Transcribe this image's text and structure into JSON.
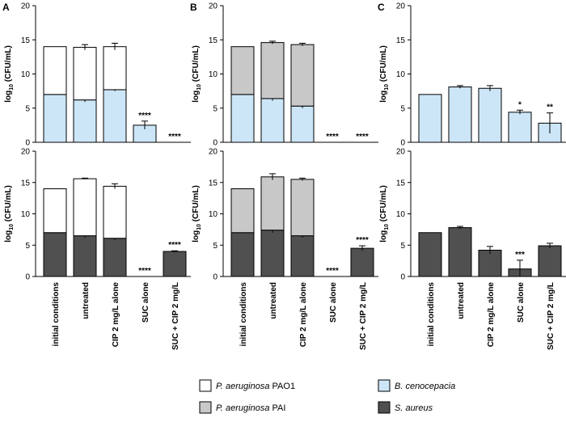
{
  "colors": {
    "pao1": "#ffffff",
    "pai": "#c8c8c8",
    "cenocepacia": "#cce6f7",
    "aureus": "#505050",
    "stroke": "#000000"
  },
  "legend": {
    "items": [
      {
        "key": "pao1",
        "italic": "P. aeruginosa",
        "rest": " PAO1"
      },
      {
        "key": "cenocepacia",
        "italic": "B. cenocepacia",
        "rest": ""
      },
      {
        "key": "pai",
        "italic": "P. aeruginosa",
        "rest": " PAI"
      },
      {
        "key": "aureus",
        "italic": "S. aureus",
        "rest": ""
      }
    ]
  },
  "chart_data": [
    {
      "panel": "A",
      "row": "top",
      "type": "bar",
      "stacked": true,
      "show_panel_label": true,
      "ylabel": "log10 (CFU/mL)",
      "ylim": [
        0,
        20
      ],
      "yticks": [
        0,
        5,
        10,
        15,
        20
      ],
      "categories": [
        "initial conditions",
        "untreated",
        "CIP 2 mg/L alone",
        "SUC alone",
        "SUC + CIP 2 mg/L"
      ],
      "series": [
        {
          "name": "B. cenocepacia",
          "color_key": "cenocepacia",
          "values": [
            7.0,
            6.2,
            7.7,
            2.5,
            0
          ],
          "errors": [
            0,
            0.3,
            0.2,
            0.6,
            0
          ]
        },
        {
          "name": "P. aeruginosa PAO1",
          "color_key": "pao1",
          "values": [
            7.0,
            7.7,
            6.3,
            0,
            0
          ],
          "errors": [
            0,
            0.4,
            0.5,
            0,
            0
          ]
        }
      ],
      "significance": [
        "",
        "",
        "",
        "****",
        "****"
      ]
    },
    {
      "panel": "B",
      "row": "top",
      "type": "bar",
      "stacked": true,
      "show_panel_label": true,
      "ylabel": "log10 (CFU/mL)",
      "ylim": [
        0,
        20
      ],
      "yticks": [
        0,
        5,
        10,
        15,
        20
      ],
      "categories": [
        "initial conditions",
        "untreated",
        "CIP 2 mg/L alone",
        "SUC alone",
        "SUC + CIP 2 mg/L"
      ],
      "series": [
        {
          "name": "B. cenocepacia",
          "color_key": "cenocepacia",
          "values": [
            7.0,
            6.4,
            5.3,
            0,
            0
          ],
          "errors": [
            0,
            0.3,
            0.3,
            0,
            0
          ]
        },
        {
          "name": "P. aeruginosa PAI",
          "color_key": "pai",
          "values": [
            7.0,
            8.2,
            9.0,
            0,
            0
          ],
          "errors": [
            0,
            0.2,
            0.2,
            0,
            0
          ]
        }
      ],
      "significance": [
        "",
        "",
        "",
        "****",
        "****"
      ]
    },
    {
      "panel": "C",
      "row": "top",
      "type": "bar",
      "stacked": false,
      "show_panel_label": true,
      "ylabel": "log10 (CFU/mL)",
      "ylim": [
        0,
        20
      ],
      "yticks": [
        0,
        5,
        10,
        15,
        20
      ],
      "categories": [
        "initial conditions",
        "untreated",
        "CIP 2 mg/L alone",
        "SUC alone",
        "SUC + CIP 2 mg/L"
      ],
      "series": [
        {
          "name": "B. cenocepacia",
          "color_key": "cenocepacia",
          "values": [
            7.0,
            8.1,
            7.9,
            4.4,
            2.8
          ],
          "errors": [
            0,
            0.2,
            0.4,
            0.3,
            1.5
          ]
        }
      ],
      "significance": [
        "",
        "",
        "",
        "*",
        "**"
      ]
    },
    {
      "panel": "A",
      "row": "bottom",
      "type": "bar",
      "stacked": true,
      "show_panel_label": false,
      "ylabel": "log10 (CFU/mL)",
      "ylim": [
        0,
        20
      ],
      "yticks": [
        0,
        5,
        10,
        15,
        20
      ],
      "categories": [
        "initial conditions",
        "untreated",
        "CIP 2 mg/L alone",
        "SUC alone",
        "SUC + CIP 2 mg/L"
      ],
      "series": [
        {
          "name": "S. aureus",
          "color_key": "aureus",
          "values": [
            7.0,
            6.5,
            6.1,
            0,
            4.0
          ],
          "errors": [
            0,
            0.3,
            0.3,
            0,
            0.1
          ]
        },
        {
          "name": "P. aeruginosa PAO1",
          "color_key": "pao1",
          "values": [
            7.0,
            9.1,
            8.3,
            0,
            0
          ],
          "errors": [
            0,
            0.1,
            0.4,
            0,
            0
          ]
        }
      ],
      "significance": [
        "",
        "",
        "",
        "****",
        "****"
      ]
    },
    {
      "panel": "B",
      "row": "bottom",
      "type": "bar",
      "stacked": true,
      "show_panel_label": false,
      "ylabel": "log10 (CFU/mL)",
      "ylim": [
        0,
        20
      ],
      "yticks": [
        0,
        5,
        10,
        15,
        20
      ],
      "categories": [
        "initial conditions",
        "untreated",
        "CIP 2 mg/L alone",
        "SUC alone",
        "SUC + CIP 2 mg/L"
      ],
      "series": [
        {
          "name": "S. aureus",
          "color_key": "aureus",
          "values": [
            7.0,
            7.4,
            6.5,
            0,
            4.5
          ],
          "errors": [
            0,
            0.4,
            0.3,
            0,
            0.4
          ]
        },
        {
          "name": "P. aeruginosa PAI",
          "color_key": "pai",
          "values": [
            7.0,
            8.5,
            9.0,
            0,
            0
          ],
          "errors": [
            0,
            0.5,
            0.2,
            0,
            0
          ]
        }
      ],
      "significance": [
        "",
        "",
        "",
        "****",
        "****"
      ]
    },
    {
      "panel": "C",
      "row": "bottom",
      "type": "bar",
      "stacked": false,
      "show_panel_label": false,
      "ylabel": "log10 (CFU/mL)",
      "ylim": [
        0,
        20
      ],
      "yticks": [
        0,
        5,
        10,
        15,
        20
      ],
      "categories": [
        "initial conditions",
        "untreated",
        "CIP 2 mg/L alone",
        "SUC alone",
        "SUC + CIP 2 mg/L"
      ],
      "series": [
        {
          "name": "S. aureus",
          "color_key": "aureus",
          "values": [
            7.0,
            7.8,
            4.2,
            1.2,
            4.9
          ],
          "errors": [
            0,
            0.2,
            0.6,
            1.4,
            0.4
          ]
        }
      ],
      "significance": [
        "",
        "",
        "",
        "***",
        ""
      ]
    }
  ]
}
